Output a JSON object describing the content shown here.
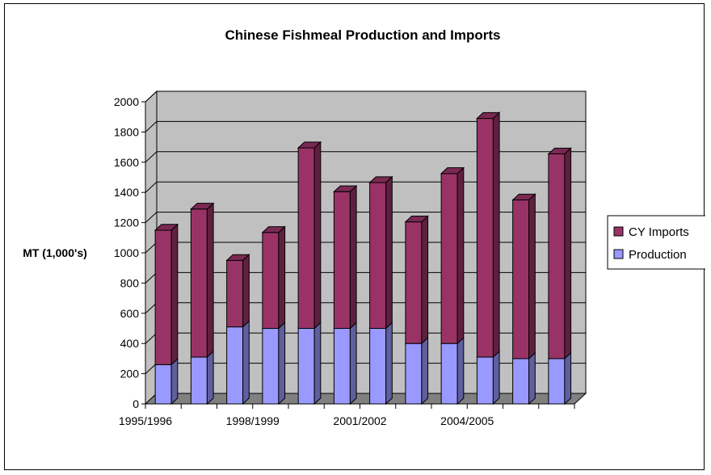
{
  "chart_data": {
    "type": "bar",
    "stacked": true,
    "three_d": true,
    "title": "Chinese Fishmeal Production and Imports",
    "xlabel": "",
    "ylabel": "MT (1,000's)",
    "ylim": [
      0,
      2000
    ],
    "ytick_step": 200,
    "yticks": [
      "0",
      "200",
      "400",
      "600",
      "800",
      "1000",
      "1200",
      "1400",
      "1600",
      "1800",
      "2000"
    ],
    "x_tick_labels": [
      "1995/1996",
      "",
      "",
      "1998/1999",
      "",
      "",
      "2001/2002",
      "",
      "",
      "2004/2005",
      "",
      ""
    ],
    "grid": true,
    "legend_position": "right",
    "series": [
      {
        "name": "Production",
        "color": "#9999ff",
        "values": [
          260,
          310,
          510,
          500,
          500,
          500,
          500,
          400,
          400,
          310,
          300,
          300
        ]
      },
      {
        "name": "CY Imports",
        "color": "#993366",
        "values": [
          890,
          980,
          440,
          635,
          1195,
          905,
          965,
          805,
          1125,
          1580,
          1050,
          1355
        ]
      }
    ]
  }
}
